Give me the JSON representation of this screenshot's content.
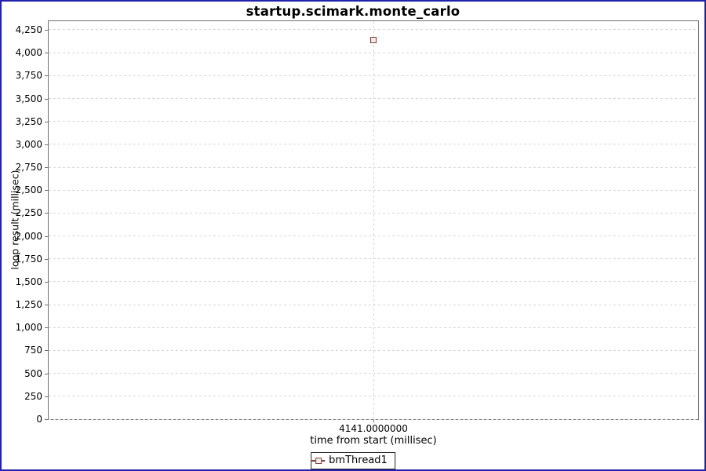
{
  "window": {
    "border_color": "#2222ac",
    "background": "#ffffff"
  },
  "chart_data": {
    "type": "scatter",
    "title": "startup.scimark.monte_carlo",
    "xlabel": "time from start (millisec)",
    "ylabel": "loop result (millisec)",
    "series": [
      {
        "name": "bmThread1",
        "points": [
          {
            "x": 4141.0,
            "y": 4141
          }
        ]
      }
    ],
    "x_tick_labels": [
      "4141.0000000"
    ],
    "x_tick_fractions": [
      0.5
    ],
    "y_ticks": [
      0,
      250,
      500,
      750,
      1000,
      1250,
      1500,
      1750,
      2000,
      2250,
      2500,
      2750,
      3000,
      3250,
      3500,
      3750,
      4000,
      4250
    ],
    "ylim": [
      0,
      4344
    ],
    "grid": "dashed",
    "legend": {
      "position": "bottom",
      "entries": [
        "bmThread1"
      ]
    },
    "colors": {
      "marker_outline": "#8a3b3b",
      "marker_fill": "#e9f1ea",
      "gridline": "#d6d6d6",
      "plot_border": "#707070",
      "tick_mark": "#6e6e6e"
    }
  }
}
